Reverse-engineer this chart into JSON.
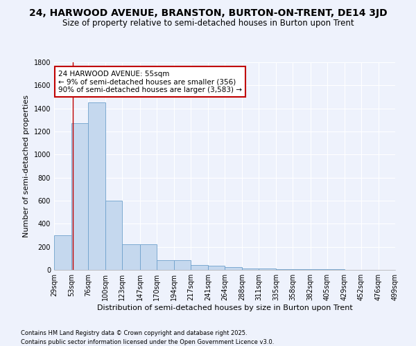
{
  "title": "24, HARWOOD AVENUE, BRANSTON, BURTON-ON-TRENT, DE14 3JD",
  "subtitle": "Size of property relative to semi-detached houses in Burton upon Trent",
  "xlabel": "Distribution of semi-detached houses by size in Burton upon Trent",
  "ylabel": "Number of semi-detached properties",
  "footnote1": "Contains HM Land Registry data © Crown copyright and database right 2025.",
  "footnote2": "Contains public sector information licensed under the Open Government Licence v3.0.",
  "bin_edges": [
    29,
    53,
    76,
    100,
    123,
    147,
    170,
    194,
    217,
    241,
    264,
    288,
    311,
    335,
    358,
    382,
    405,
    429,
    452,
    476,
    499
  ],
  "bar_heights": [
    300,
    1270,
    1450,
    600,
    220,
    220,
    85,
    85,
    40,
    35,
    25,
    15,
    10,
    5,
    5,
    5,
    5,
    3,
    2,
    1
  ],
  "bar_color": "#c5d8ee",
  "bar_edge_color": "#6ea0cc",
  "property_line_x": 55,
  "property_line_color": "#c00000",
  "annotation_text": "24 HARWOOD AVENUE: 55sqm\n← 9% of semi-detached houses are smaller (356)\n90% of semi-detached houses are larger (3,583) →",
  "annotation_box_color": "#ffffff",
  "annotation_box_edge_color": "#c00000",
  "ylim": [
    0,
    1800
  ],
  "background_color": "#eef2fc",
  "grid_color": "#ffffff",
  "title_fontsize": 10,
  "subtitle_fontsize": 8.5,
  "axis_label_fontsize": 8,
  "tick_fontsize": 7,
  "annotation_fontsize": 7.5,
  "footnote_fontsize": 6
}
